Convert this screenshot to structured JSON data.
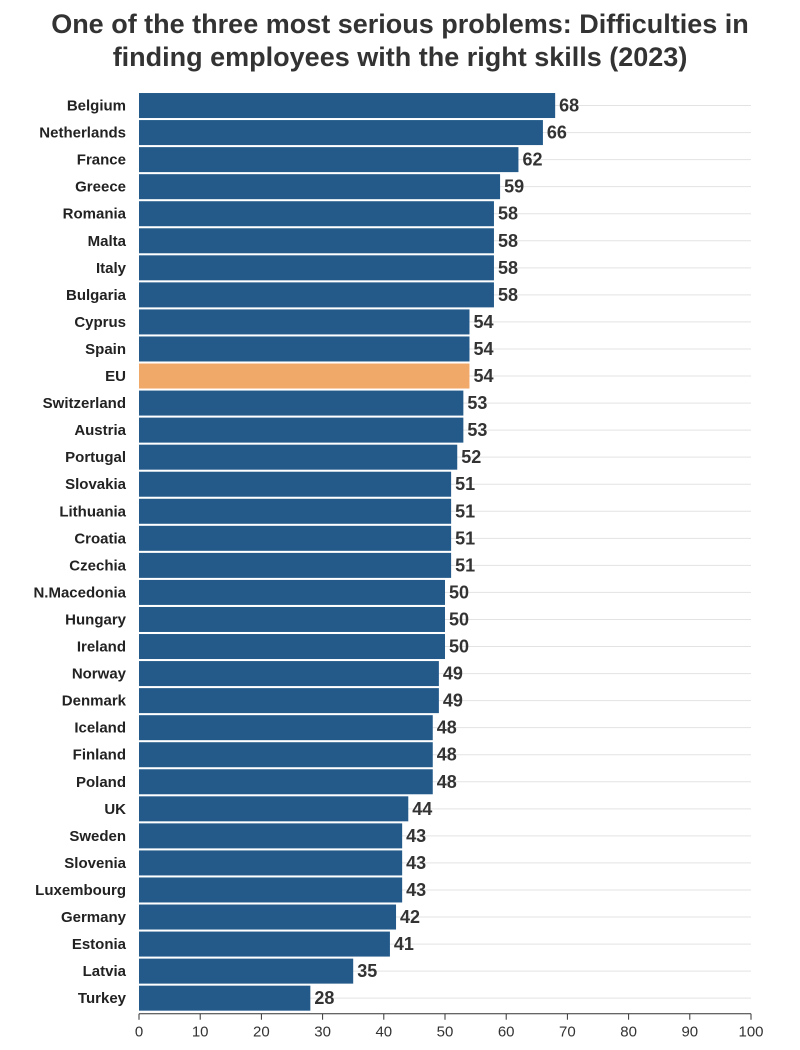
{
  "chart_data": {
    "type": "bar",
    "orientation": "horizontal",
    "title_line1": "One of the three most serious problems: Difficulties in",
    "title_line2": "finding employees with the right skills (2023)",
    "categories": [
      "Belgium",
      "Netherlands",
      "France",
      "Greece",
      "Romania",
      "Malta",
      "Italy",
      "Bulgaria",
      "Cyprus",
      "Spain",
      "EU",
      "Switzerland",
      "Austria",
      "Portugal",
      "Slovakia",
      "Lithuania",
      "Croatia",
      "Czechia",
      "N.Macedonia",
      "Hungary",
      "Ireland",
      "Norway",
      "Denmark",
      "Iceland",
      "Finland",
      "Poland",
      "UK",
      "Sweden",
      "Slovenia",
      "Luxembourg",
      "Germany",
      "Estonia",
      "Latvia",
      "Turkey"
    ],
    "values": [
      68,
      66,
      62,
      59,
      58,
      58,
      58,
      58,
      54,
      54,
      54,
      53,
      53,
      52,
      51,
      51,
      51,
      51,
      50,
      50,
      50,
      49,
      49,
      48,
      48,
      48,
      44,
      43,
      43,
      43,
      42,
      41,
      35,
      28
    ],
    "highlight": "EU",
    "xlim": [
      0,
      100
    ],
    "xticks": [
      "0",
      "10",
      "20",
      "30",
      "40",
      "50",
      "60",
      "70",
      "80",
      "90",
      "100"
    ],
    "xlabel": "",
    "ylabel": "",
    "grid": true,
    "colors": {
      "bar": "#235a8a",
      "highlight": "#f0a968",
      "grid": "#e3e3e3"
    }
  }
}
